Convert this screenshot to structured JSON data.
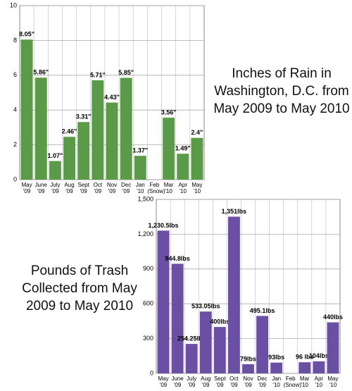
{
  "chart_data": [
    {
      "type": "bar",
      "title": "Inches of Rain in Washington, D.C. from May 2009 to May 2010",
      "categories": [
        "May '09",
        "June '09",
        "July '09",
        "Aug '09",
        "Sept '09",
        "Oct '09",
        "Nov '09",
        "Dec '09",
        "Jan '10",
        "Feb (Snow)",
        "Mar '10",
        "Apr '10",
        "May '10"
      ],
      "values": [
        8.05,
        5.86,
        1.07,
        2.46,
        3.31,
        5.71,
        4.43,
        5.85,
        1.37,
        null,
        3.56,
        1.49,
        2.4
      ],
      "value_labels": [
        "8.05\"",
        "5.86\"",
        "1.07\"",
        "2.46\"",
        "3.31\"",
        "5.71\"",
        "4.43\"",
        "5.85\"",
        "1.37\"",
        null,
        "3.56\"",
        "1.49\"",
        "2.4\""
      ],
      "color": "#5b9a48",
      "ylim": [
        0,
        10
      ],
      "yticks": [
        0,
        2,
        4,
        6,
        8,
        10
      ],
      "grid": true
    },
    {
      "type": "bar",
      "title": "Pounds of Trash Collected from May 2009 to May 2010",
      "categories": [
        "May '09",
        "June '09",
        "July '09",
        "Aug '09",
        "Sept '09",
        "Oct '09",
        "Nov '09",
        "Dec '09",
        "Jan '10",
        "Feb (Snow)",
        "Mar '10",
        "Apr '10",
        "May '10"
      ],
      "values": [
        1230.5,
        944.8,
        254.25,
        533.05,
        400,
        1351,
        79,
        495.1,
        93,
        null,
        96,
        104,
        440
      ],
      "value_labels": [
        "1,230.5lbs",
        "944.8lbs",
        "254.25lbs",
        "533.05lbs",
        "400lbs",
        "1,351lbs",
        "79lbs",
        "495.1lbs",
        "93lbs",
        null,
        "96 lbs",
        "104lbs",
        "440lbs"
      ],
      "color": "#6b4fa2",
      "ylim": [
        0,
        1500
      ],
      "yticks": [
        0,
        300,
        600,
        900,
        {
          "value": 1200,
          "label": "1,200"
        },
        {
          "value": 1500,
          "label": "1,500"
        }
      ],
      "grid": true
    }
  ]
}
